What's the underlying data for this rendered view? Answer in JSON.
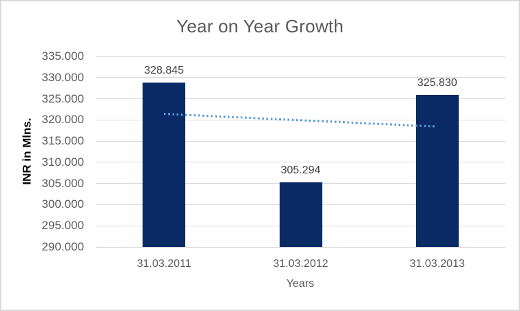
{
  "chart_data": {
    "type": "bar",
    "title": "Year on Year Growth",
    "categories": [
      "31.03.2011",
      "31.03.2012",
      "31.03.2013"
    ],
    "values": [
      328.845,
      305.294,
      325.83
    ],
    "data_labels": [
      "328.845",
      "305.294",
      "325.830"
    ],
    "xlabel": "Years",
    "ylabel": "INR in Mlns.",
    "ylim": [
      290,
      335
    ],
    "ytick_step": 5,
    "ytick_labels": [
      "335.000",
      "330.000",
      "325.000",
      "320.000",
      "315.000",
      "310.000",
      "305.000",
      "300.000",
      "295.000",
      "290.000"
    ],
    "grid": true,
    "legend": "none",
    "trendline": {
      "style": "dotted",
      "start_value": 321.497,
      "end_value": 318.482
    },
    "colors": {
      "bar": "#0a2a66",
      "trendline": "#5b9bd5",
      "gridline": "#d9d9d9",
      "tick_text": "#595959",
      "data_label_text": "#404040",
      "title_text": "#595959",
      "y_axis_title_text": "#000000",
      "frame_border": "#d9d9d9",
      "background": "#ffffff"
    }
  }
}
